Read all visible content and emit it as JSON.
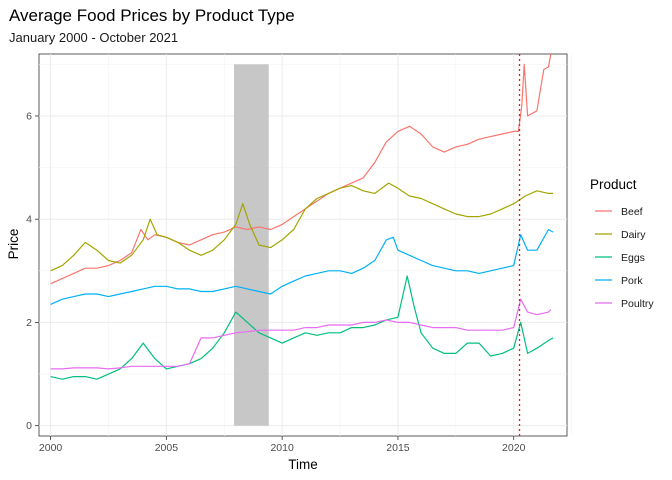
{
  "chart_data": {
    "type": "line",
    "title": "Average Food Prices by Product Type",
    "subtitle": "January 2000 - October 2021",
    "xlabel": "Time",
    "ylabel": "Price",
    "xlim": [
      1999.5,
      2022.3
    ],
    "ylim": [
      -0.2,
      7.2
    ],
    "x_ticks": [
      2000,
      2005,
      2010,
      2015,
      2020
    ],
    "y_ticks": [
      0,
      2,
      4,
      6
    ],
    "grid": true,
    "legend": {
      "title": "Product",
      "placement": "right"
    },
    "shaded_region": {
      "x": [
        2007.92,
        2009.42
      ],
      "y": [
        0,
        7
      ],
      "color": "#bdbdbd"
    },
    "vline": {
      "x": 2020.25,
      "color": "#e41a1c",
      "style": "dotted"
    },
    "series": [
      {
        "name": "Beef",
        "color": "#F8766D",
        "points": [
          [
            2000,
            2.75
          ],
          [
            2000.5,
            2.85
          ],
          [
            2001,
            2.95
          ],
          [
            2001.5,
            3.05
          ],
          [
            2002,
            3.05
          ],
          [
            2002.5,
            3.1
          ],
          [
            2003,
            3.2
          ],
          [
            2003.5,
            3.35
          ],
          [
            2003.9,
            3.8
          ],
          [
            2004.2,
            3.6
          ],
          [
            2004.5,
            3.7
          ],
          [
            2005,
            3.65
          ],
          [
            2005.5,
            3.55
          ],
          [
            2006,
            3.5
          ],
          [
            2006.5,
            3.6
          ],
          [
            2007,
            3.7
          ],
          [
            2007.5,
            3.75
          ],
          [
            2008,
            3.85
          ],
          [
            2008.5,
            3.8
          ],
          [
            2009,
            3.85
          ],
          [
            2009.5,
            3.8
          ],
          [
            2010,
            3.9
          ],
          [
            2010.5,
            4.05
          ],
          [
            2011,
            4.2
          ],
          [
            2011.5,
            4.35
          ],
          [
            2012,
            4.5
          ],
          [
            2012.5,
            4.6
          ],
          [
            2013,
            4.7
          ],
          [
            2013.5,
            4.8
          ],
          [
            2014,
            5.1
          ],
          [
            2014.5,
            5.5
          ],
          [
            2015,
            5.7
          ],
          [
            2015.5,
            5.8
          ],
          [
            2016,
            5.65
          ],
          [
            2016.5,
            5.4
          ],
          [
            2017,
            5.3
          ],
          [
            2017.5,
            5.4
          ],
          [
            2018,
            5.45
          ],
          [
            2018.5,
            5.55
          ],
          [
            2019,
            5.6
          ],
          [
            2019.5,
            5.65
          ],
          [
            2020,
            5.7
          ],
          [
            2020.2,
            5.7
          ],
          [
            2020.35,
            6.2
          ],
          [
            2020.45,
            7.0
          ],
          [
            2020.6,
            6.0
          ],
          [
            2021,
            6.1
          ],
          [
            2021.3,
            6.9
          ],
          [
            2021.5,
            6.95
          ],
          [
            2021.6,
            7.2
          ]
        ]
      },
      {
        "name": "Dairy",
        "color": "#A3A500",
        "points": [
          [
            2000,
            3.0
          ],
          [
            2000.5,
            3.1
          ],
          [
            2001,
            3.3
          ],
          [
            2001.5,
            3.55
          ],
          [
            2002,
            3.4
          ],
          [
            2002.5,
            3.2
          ],
          [
            2003,
            3.15
          ],
          [
            2003.5,
            3.3
          ],
          [
            2004,
            3.6
          ],
          [
            2004.3,
            4.0
          ],
          [
            2004.6,
            3.7
          ],
          [
            2005,
            3.65
          ],
          [
            2005.5,
            3.55
          ],
          [
            2006,
            3.4
          ],
          [
            2006.5,
            3.3
          ],
          [
            2007,
            3.4
          ],
          [
            2007.5,
            3.6
          ],
          [
            2008,
            3.9
          ],
          [
            2008.3,
            4.3
          ],
          [
            2008.6,
            3.9
          ],
          [
            2009,
            3.5
          ],
          [
            2009.5,
            3.45
          ],
          [
            2010,
            3.6
          ],
          [
            2010.5,
            3.8
          ],
          [
            2011,
            4.2
          ],
          [
            2011.5,
            4.4
          ],
          [
            2012,
            4.5
          ],
          [
            2012.5,
            4.6
          ],
          [
            2013,
            4.65
          ],
          [
            2013.5,
            4.55
          ],
          [
            2014,
            4.5
          ],
          [
            2014.6,
            4.7
          ],
          [
            2015,
            4.6
          ],
          [
            2015.5,
            4.45
          ],
          [
            2016,
            4.4
          ],
          [
            2016.5,
            4.3
          ],
          [
            2017,
            4.2
          ],
          [
            2017.5,
            4.1
          ],
          [
            2018,
            4.05
          ],
          [
            2018.5,
            4.05
          ],
          [
            2019,
            4.1
          ],
          [
            2019.5,
            4.2
          ],
          [
            2020,
            4.3
          ],
          [
            2020.5,
            4.45
          ],
          [
            2021,
            4.55
          ],
          [
            2021.5,
            4.5
          ],
          [
            2021.7,
            4.5
          ]
        ]
      },
      {
        "name": "Eggs",
        "color": "#00BF7D",
        "points": [
          [
            2000,
            0.95
          ],
          [
            2000.5,
            0.9
          ],
          [
            2001,
            0.95
          ],
          [
            2001.5,
            0.95
          ],
          [
            2002,
            0.9
          ],
          [
            2002.5,
            1.0
          ],
          [
            2003,
            1.1
          ],
          [
            2003.5,
            1.3
          ],
          [
            2004,
            1.6
          ],
          [
            2004.5,
            1.3
          ],
          [
            2005,
            1.1
          ],
          [
            2005.5,
            1.15
          ],
          [
            2006,
            1.2
          ],
          [
            2006.5,
            1.3
          ],
          [
            2007,
            1.5
          ],
          [
            2007.5,
            1.8
          ],
          [
            2008,
            2.2
          ],
          [
            2008.5,
            2.0
          ],
          [
            2009,
            1.8
          ],
          [
            2009.5,
            1.7
          ],
          [
            2010,
            1.6
          ],
          [
            2010.5,
            1.7
          ],
          [
            2011,
            1.8
          ],
          [
            2011.5,
            1.75
          ],
          [
            2012,
            1.8
          ],
          [
            2012.5,
            1.8
          ],
          [
            2013,
            1.9
          ],
          [
            2013.5,
            1.9
          ],
          [
            2014,
            1.95
          ],
          [
            2014.5,
            2.05
          ],
          [
            2015,
            2.1
          ],
          [
            2015.4,
            2.9
          ],
          [
            2015.7,
            2.3
          ],
          [
            2016,
            1.8
          ],
          [
            2016.5,
            1.5
          ],
          [
            2017,
            1.4
          ],
          [
            2017.5,
            1.4
          ],
          [
            2018,
            1.6
          ],
          [
            2018.5,
            1.6
          ],
          [
            2019,
            1.35
          ],
          [
            2019.5,
            1.4
          ],
          [
            2020,
            1.5
          ],
          [
            2020.3,
            2.0
          ],
          [
            2020.6,
            1.4
          ],
          [
            2021,
            1.5
          ],
          [
            2021.5,
            1.65
          ],
          [
            2021.7,
            1.7
          ]
        ]
      },
      {
        "name": "Pork",
        "color": "#00B0F6",
        "points": [
          [
            2000,
            2.35
          ],
          [
            2000.5,
            2.45
          ],
          [
            2001,
            2.5
          ],
          [
            2001.5,
            2.55
          ],
          [
            2002,
            2.55
          ],
          [
            2002.5,
            2.5
          ],
          [
            2003,
            2.55
          ],
          [
            2003.5,
            2.6
          ],
          [
            2004,
            2.65
          ],
          [
            2004.5,
            2.7
          ],
          [
            2005,
            2.7
          ],
          [
            2005.5,
            2.65
          ],
          [
            2006,
            2.65
          ],
          [
            2006.5,
            2.6
          ],
          [
            2007,
            2.6
          ],
          [
            2007.5,
            2.65
          ],
          [
            2008,
            2.7
          ],
          [
            2008.5,
            2.65
          ],
          [
            2009,
            2.6
          ],
          [
            2009.5,
            2.55
          ],
          [
            2010,
            2.7
          ],
          [
            2010.5,
            2.8
          ],
          [
            2011,
            2.9
          ],
          [
            2011.5,
            2.95
          ],
          [
            2012,
            3.0
          ],
          [
            2012.5,
            3.0
          ],
          [
            2013,
            2.95
          ],
          [
            2013.5,
            3.05
          ],
          [
            2014,
            3.2
          ],
          [
            2014.5,
            3.6
          ],
          [
            2014.8,
            3.65
          ],
          [
            2015,
            3.4
          ],
          [
            2015.5,
            3.3
          ],
          [
            2016,
            3.2
          ],
          [
            2016.5,
            3.1
          ],
          [
            2017,
            3.05
          ],
          [
            2017.5,
            3.0
          ],
          [
            2018,
            3.0
          ],
          [
            2018.5,
            2.95
          ],
          [
            2019,
            3.0
          ],
          [
            2019.5,
            3.05
          ],
          [
            2020,
            3.1
          ],
          [
            2020.3,
            3.7
          ],
          [
            2020.6,
            3.4
          ],
          [
            2021,
            3.4
          ],
          [
            2021.5,
            3.8
          ],
          [
            2021.7,
            3.75
          ]
        ]
      },
      {
        "name": "Poultry",
        "color": "#E76BF3",
        "points": [
          [
            2000,
            1.1
          ],
          [
            2000.5,
            1.1
          ],
          [
            2001,
            1.12
          ],
          [
            2001.5,
            1.12
          ],
          [
            2002,
            1.12
          ],
          [
            2002.5,
            1.1
          ],
          [
            2003,
            1.12
          ],
          [
            2003.5,
            1.15
          ],
          [
            2004,
            1.15
          ],
          [
            2004.5,
            1.15
          ],
          [
            2005,
            1.15
          ],
          [
            2005.5,
            1.15
          ],
          [
            2006,
            1.2
          ],
          [
            2006.5,
            1.7
          ],
          [
            2007,
            1.7
          ],
          [
            2007.5,
            1.75
          ],
          [
            2008,
            1.8
          ],
          [
            2008.5,
            1.82
          ],
          [
            2009,
            1.85
          ],
          [
            2009.5,
            1.85
          ],
          [
            2010,
            1.85
          ],
          [
            2010.5,
            1.85
          ],
          [
            2011,
            1.9
          ],
          [
            2011.5,
            1.9
          ],
          [
            2012,
            1.95
          ],
          [
            2012.5,
            1.95
          ],
          [
            2013,
            1.95
          ],
          [
            2013.5,
            2.0
          ],
          [
            2014,
            2.0
          ],
          [
            2014.5,
            2.05
          ],
          [
            2015,
            2.0
          ],
          [
            2015.5,
            2.0
          ],
          [
            2016,
            1.95
          ],
          [
            2016.5,
            1.9
          ],
          [
            2017,
            1.9
          ],
          [
            2017.5,
            1.9
          ],
          [
            2018,
            1.85
          ],
          [
            2018.5,
            1.85
          ],
          [
            2019,
            1.85
          ],
          [
            2019.5,
            1.85
          ],
          [
            2020,
            1.9
          ],
          [
            2020.3,
            2.45
          ],
          [
            2020.6,
            2.2
          ],
          [
            2021,
            2.15
          ],
          [
            2021.5,
            2.2
          ],
          [
            2021.6,
            2.25
          ]
        ]
      }
    ]
  }
}
